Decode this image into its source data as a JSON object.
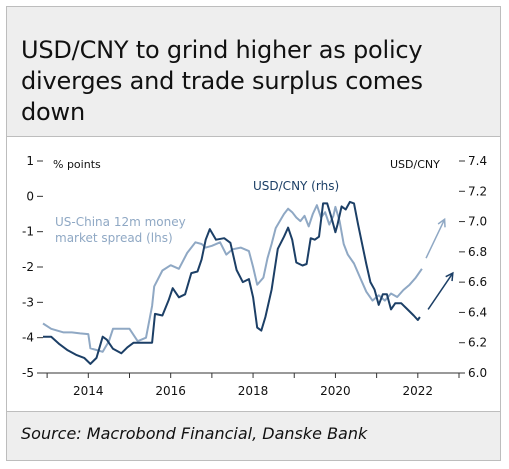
{
  "title": "USD/CNY to grind higher as policy diverges and trade surplus comes down",
  "source": "Source: Macrobond Financial, Danske Bank",
  "chart_data": {
    "type": "line",
    "left_axis": {
      "label": "% points",
      "ticks": [
        1,
        0,
        -1,
        -2,
        -3,
        -4,
        -5
      ],
      "range": [
        -5,
        1
      ]
    },
    "right_axis": {
      "label": "USD/CNY",
      "ticks": [
        7.4,
        7.2,
        7.0,
        6.8,
        6.6,
        6.4,
        6.2,
        6.0
      ],
      "range": [
        6.0,
        7.4
      ]
    },
    "x_axis": {
      "ticks": [
        2014,
        2016,
        2018,
        2020,
        2022
      ],
      "range": [
        2012.9,
        2023.0
      ]
    },
    "series": [
      {
        "name": "US-China 12m money market spread (lhs)",
        "axis": "left",
        "color": "#8fa8c4",
        "points": [
          [
            2012.9,
            -3.6
          ],
          [
            2013.1,
            -3.75
          ],
          [
            2013.4,
            -3.85
          ],
          [
            2013.6,
            -3.85
          ],
          [
            2013.8,
            -3.88
          ],
          [
            2014.0,
            -3.9
          ],
          [
            2014.05,
            -4.3
          ],
          [
            2014.2,
            -4.35
          ],
          [
            2014.35,
            -4.4
          ],
          [
            2014.5,
            -4.1
          ],
          [
            2014.6,
            -3.75
          ],
          [
            2014.8,
            -3.75
          ],
          [
            2015.0,
            -3.75
          ],
          [
            2015.2,
            -4.1
          ],
          [
            2015.4,
            -4.0
          ],
          [
            2015.55,
            -3.1
          ],
          [
            2015.6,
            -2.55
          ],
          [
            2015.8,
            -2.1
          ],
          [
            2016.0,
            -1.95
          ],
          [
            2016.2,
            -2.05
          ],
          [
            2016.4,
            -1.6
          ],
          [
            2016.6,
            -1.3
          ],
          [
            2016.75,
            -1.35
          ],
          [
            2016.85,
            -1.45
          ],
          [
            2017.0,
            -1.4
          ],
          [
            2017.2,
            -1.3
          ],
          [
            2017.35,
            -1.65
          ],
          [
            2017.5,
            -1.5
          ],
          [
            2017.7,
            -1.45
          ],
          [
            2017.9,
            -1.55
          ],
          [
            2018.0,
            -2.0
          ],
          [
            2018.1,
            -2.5
          ],
          [
            2018.25,
            -2.3
          ],
          [
            2018.35,
            -1.75
          ],
          [
            2018.45,
            -1.35
          ],
          [
            2018.55,
            -0.9
          ],
          [
            2018.65,
            -0.7
          ],
          [
            2018.75,
            -0.5
          ],
          [
            2018.85,
            -0.35
          ],
          [
            2018.95,
            -0.45
          ],
          [
            2019.05,
            -0.6
          ],
          [
            2019.15,
            -0.7
          ],
          [
            2019.25,
            -0.55
          ],
          [
            2019.35,
            -0.85
          ],
          [
            2019.45,
            -0.5
          ],
          [
            2019.55,
            -0.25
          ],
          [
            2019.65,
            -0.6
          ],
          [
            2019.75,
            -0.45
          ],
          [
            2019.85,
            -0.8
          ],
          [
            2019.95,
            -0.55
          ],
          [
            2020.0,
            -0.3
          ],
          [
            2020.1,
            -0.7
          ],
          [
            2020.2,
            -1.35
          ],
          [
            2020.3,
            -1.65
          ],
          [
            2020.45,
            -1.9
          ],
          [
            2020.6,
            -2.3
          ],
          [
            2020.75,
            -2.7
          ],
          [
            2020.9,
            -2.95
          ],
          [
            2021.05,
            -2.8
          ],
          [
            2021.2,
            -2.95
          ],
          [
            2021.35,
            -2.75
          ],
          [
            2021.5,
            -2.85
          ],
          [
            2021.65,
            -2.65
          ],
          [
            2021.8,
            -2.5
          ],
          [
            2021.95,
            -2.3
          ],
          [
            2022.1,
            -2.05
          ]
        ]
      },
      {
        "name": "USD/CNY (rhs)",
        "axis": "right",
        "color": "#1c3f66",
        "points": [
          [
            2012.9,
            6.24
          ],
          [
            2013.1,
            6.24
          ],
          [
            2013.3,
            6.19
          ],
          [
            2013.5,
            6.15
          ],
          [
            2013.7,
            6.12
          ],
          [
            2013.9,
            6.1
          ],
          [
            2014.05,
            6.06
          ],
          [
            2014.2,
            6.1
          ],
          [
            2014.35,
            6.24
          ],
          [
            2014.45,
            6.22
          ],
          [
            2014.6,
            6.16
          ],
          [
            2014.8,
            6.13
          ],
          [
            2014.95,
            6.17
          ],
          [
            2015.1,
            6.2
          ],
          [
            2015.3,
            6.2
          ],
          [
            2015.55,
            6.2
          ],
          [
            2015.62,
            6.39
          ],
          [
            2015.8,
            6.38
          ],
          [
            2015.95,
            6.48
          ],
          [
            2016.05,
            6.56
          ],
          [
            2016.2,
            6.5
          ],
          [
            2016.35,
            6.52
          ],
          [
            2016.5,
            6.66
          ],
          [
            2016.65,
            6.67
          ],
          [
            2016.75,
            6.75
          ],
          [
            2016.85,
            6.88
          ],
          [
            2016.95,
            6.95
          ],
          [
            2017.1,
            6.88
          ],
          [
            2017.3,
            6.89
          ],
          [
            2017.45,
            6.86
          ],
          [
            2017.6,
            6.68
          ],
          [
            2017.75,
            6.6
          ],
          [
            2017.9,
            6.62
          ],
          [
            2018.0,
            6.5
          ],
          [
            2018.1,
            6.3
          ],
          [
            2018.2,
            6.28
          ],
          [
            2018.3,
            6.37
          ],
          [
            2018.45,
            6.55
          ],
          [
            2018.6,
            6.82
          ],
          [
            2018.75,
            6.9
          ],
          [
            2018.85,
            6.96
          ],
          [
            2018.95,
            6.88
          ],
          [
            2019.05,
            6.73
          ],
          [
            2019.2,
            6.71
          ],
          [
            2019.3,
            6.72
          ],
          [
            2019.4,
            6.89
          ],
          [
            2019.5,
            6.88
          ],
          [
            2019.6,
            6.9
          ],
          [
            2019.7,
            7.12
          ],
          [
            2019.8,
            7.12
          ],
          [
            2019.9,
            7.03
          ],
          [
            2020.0,
            6.93
          ],
          [
            2020.05,
            6.98
          ],
          [
            2020.15,
            7.1
          ],
          [
            2020.25,
            7.08
          ],
          [
            2020.35,
            7.13
          ],
          [
            2020.45,
            7.12
          ],
          [
            2020.55,
            6.98
          ],
          [
            2020.65,
            6.85
          ],
          [
            2020.75,
            6.72
          ],
          [
            2020.85,
            6.6
          ],
          [
            2020.95,
            6.55
          ],
          [
            2021.05,
            6.45
          ],
          [
            2021.15,
            6.52
          ],
          [
            2021.25,
            6.52
          ],
          [
            2021.35,
            6.42
          ],
          [
            2021.45,
            6.46
          ],
          [
            2021.6,
            6.46
          ],
          [
            2021.75,
            6.42
          ],
          [
            2021.9,
            6.38
          ],
          [
            2022.0,
            6.35
          ],
          [
            2022.05,
            6.37
          ]
        ]
      }
    ],
    "annotations": [
      {
        "text": "USD/CNY (rhs)",
        "color": "#1c3f66"
      },
      {
        "text": "US-China 12m money",
        "color": "#8fa8c4"
      },
      {
        "text": "market spread (lhs)",
        "color": "#8fa8c4"
      }
    ],
    "forecast_arrows": [
      {
        "series_axis": "left",
        "from": [
          2022.2,
          -1.75
        ],
        "to": [
          2022.65,
          -0.65
        ],
        "color": "#8fa8c4"
      },
      {
        "series_axis": "right",
        "from": [
          2022.25,
          6.42
        ],
        "to": [
          2022.85,
          6.66
        ],
        "color": "#1c3f66"
      }
    ]
  }
}
